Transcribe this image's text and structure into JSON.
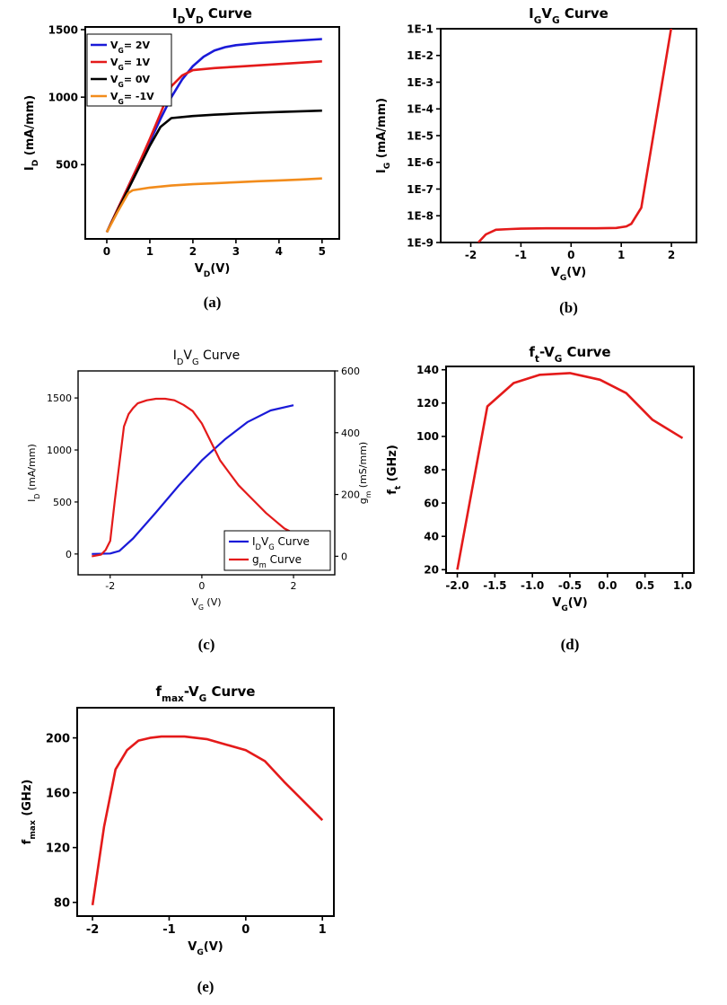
{
  "colors": {
    "blue": "#1a1ad8",
    "red": "#e41a1a",
    "black": "#000000",
    "orange": "#f28c1c"
  },
  "chart_data": [
    {
      "id": "a",
      "type": "line",
      "caption": "(a)",
      "title": {
        "main": "I",
        "sub1": "D",
        "mid": "V",
        "sub2": "D",
        "tail": " Curve"
      },
      "xlabel": {
        "main": "V",
        "sub": "D",
        "tail": "(V)"
      },
      "ylabel": {
        "main": "I",
        "sub": "D",
        "tail": " (mA/mm)"
      },
      "xlim": [
        -0.5,
        5.4
      ],
      "ylim": [
        -50,
        1520
      ],
      "xticks": [
        0,
        1,
        2,
        3,
        4,
        5
      ],
      "xtick_labels": [
        "0",
        "1",
        "2",
        "3",
        "4",
        "5"
      ],
      "yticks": [
        500,
        1000,
        1500
      ],
      "ytick_labels": [
        "500",
        "1000",
        "1500"
      ],
      "legend_placement": "top-left",
      "series": [
        {
          "name": "V_G= 2V",
          "legend": {
            "main": "V",
            "sub": "G",
            "tail": "= 2V"
          },
          "color": "#1a1ad8",
          "x": [
            0,
            0.25,
            0.5,
            0.75,
            1,
            1.25,
            1.5,
            1.75,
            2,
            2.25,
            2.5,
            2.75,
            3,
            3.5,
            4,
            4.5,
            5
          ],
          "y": [
            0,
            170,
            340,
            510,
            670,
            840,
            1000,
            1130,
            1230,
            1300,
            1345,
            1370,
            1385,
            1400,
            1410,
            1420,
            1430
          ]
        },
        {
          "name": "V_G= 1V",
          "legend": {
            "main": "V",
            "sub": "G",
            "tail": "= 1V"
          },
          "color": "#e41a1a",
          "x": [
            0,
            0.25,
            0.5,
            0.75,
            1,
            1.25,
            1.5,
            1.75,
            2,
            2.5,
            3,
            3.5,
            4,
            4.5,
            5
          ],
          "y": [
            0,
            170,
            340,
            510,
            690,
            880,
            1080,
            1160,
            1200,
            1215,
            1225,
            1235,
            1245,
            1255,
            1265
          ]
        },
        {
          "name": "V_G= 0V",
          "legend": {
            "main": "V",
            "sub": "G",
            "tail": "= 0V"
          },
          "color": "#000000",
          "x": [
            0,
            0.25,
            0.5,
            0.75,
            1,
            1.25,
            1.5,
            2,
            2.5,
            3,
            3.5,
            4,
            4.5,
            5
          ],
          "y": [
            0,
            160,
            320,
            480,
            640,
            780,
            845,
            860,
            870,
            878,
            885,
            890,
            895,
            900
          ]
        },
        {
          "name": "V_G= -1V",
          "legend": {
            "main": "V",
            "sub": "G",
            "tail": "= -1V"
          },
          "color": "#f28c1c",
          "x": [
            0,
            0.25,
            0.5,
            0.6,
            1,
            1.5,
            2,
            2.5,
            3,
            3.5,
            4,
            4.5,
            5
          ],
          "y": [
            0,
            150,
            290,
            310,
            330,
            345,
            355,
            362,
            370,
            377,
            383,
            390,
            398
          ]
        }
      ]
    },
    {
      "id": "b",
      "type": "line",
      "caption": "(b)",
      "title": {
        "main": "I",
        "sub1": "G",
        "mid": "V",
        "sub2": "G",
        "tail": " Curve"
      },
      "xlabel": {
        "main": "V",
        "sub": "G",
        "tail": "(V)"
      },
      "ylabel": {
        "main": "I",
        "sub": "G",
        "tail": " (mA/mm)"
      },
      "yscale": "log",
      "xlim": [
        -2.6,
        2.5
      ],
      "ylim_exp": [
        -9,
        -1
      ],
      "xticks": [
        -2,
        -1,
        0,
        1,
        2
      ],
      "xtick_labels": [
        "-2",
        "-1",
        "0",
        "1",
        "2"
      ],
      "yticks_exp": [
        -1,
        -2,
        -3,
        -4,
        -5,
        -6,
        -7,
        -8,
        -9
      ],
      "ytick_labels": [
        "1E-1",
        "1E-2",
        "1E-3",
        "1E-4",
        "1E-5",
        "1E-6",
        "1E-7",
        "1E-8",
        "1E-9"
      ],
      "series": [
        {
          "color": "#e41a1a",
          "x": [
            -1.85,
            -1.7,
            -1.5,
            -1.2,
            -1,
            -0.5,
            0,
            0.5,
            0.9,
            1.1,
            1.2,
            1.4,
            2
          ],
          "y": [
            1e-09,
            2e-09,
            3e-09,
            3.2e-09,
            3.3e-09,
            3.4e-09,
            3.4e-09,
            3.4e-09,
            3.5e-09,
            4e-09,
            5e-09,
            2e-08,
            0.12
          ]
        }
      ]
    },
    {
      "id": "c",
      "type": "line",
      "caption": "(c)",
      "title": {
        "main": "I",
        "sub1": "D",
        "mid": "V",
        "sub2": "G",
        "tail": " Curve"
      },
      "xlabel": {
        "main": "V",
        "sub": "G",
        "tail": " (V)"
      },
      "ylabel": {
        "main": "I",
        "sub": "D",
        "tail": " (mA/mm)"
      },
      "y2label": {
        "main": "g",
        "sub": "m",
        "tail": " (mS/mm)"
      },
      "xlim": [
        -2.7,
        2.9
      ],
      "ylim": [
        -200,
        1760
      ],
      "y2lim": [
        -60,
        600
      ],
      "xticks": [
        -2,
        0,
        2
      ],
      "xtick_labels": [
        "-2",
        "0",
        "2"
      ],
      "yticks": [
        0,
        500,
        1000,
        1500
      ],
      "ytick_labels": [
        "0",
        "500",
        "1000",
        "1500"
      ],
      "y2ticks": [
        0,
        200,
        400,
        600
      ],
      "y2tick_labels": [
        "0",
        "200",
        "400",
        "600"
      ],
      "legend_placement": "bottom-right",
      "series": [
        {
          "name": "I_DV_G Curve",
          "legend": {
            "main": "I",
            "sub1": "D",
            "mid": "V",
            "sub2": "G",
            "tail": " Curve"
          },
          "axis": "left",
          "color": "#1a1ad8",
          "x": [
            -2.4,
            -2,
            -1.8,
            -1.5,
            -1,
            -0.5,
            0,
            0.5,
            1,
            1.5,
            2
          ],
          "y": [
            0,
            5,
            30,
            150,
            400,
            660,
            900,
            1100,
            1270,
            1380,
            1430
          ]
        },
        {
          "name": "g_m Curve",
          "legend": {
            "main": "g",
            "sub": "m",
            "tail": " Curve"
          },
          "axis": "right",
          "color": "#e41a1a",
          "x": [
            -2.4,
            -2.2,
            -2.1,
            -2,
            -1.9,
            -1.8,
            -1.7,
            -1.6,
            -1.5,
            -1.4,
            -1.2,
            -1,
            -0.8,
            -0.6,
            -0.4,
            -0.2,
            0,
            0.2,
            0.4,
            0.6,
            0.8,
            1,
            1.2,
            1.4,
            1.6,
            1.8,
            2
          ],
          "y": [
            0,
            5,
            20,
            50,
            180,
            300,
            420,
            460,
            480,
            495,
            505,
            510,
            510,
            505,
            490,
            470,
            430,
            370,
            310,
            270,
            230,
            200,
            170,
            140,
            115,
            90,
            75
          ]
        }
      ]
    },
    {
      "id": "d",
      "type": "line",
      "caption": "(d)",
      "title": {
        "main": "f",
        "sub1": "t",
        "mid": "-V",
        "sub2": "G",
        "tail": " Curve"
      },
      "xlabel": {
        "main": "V",
        "sub": "G",
        "tail": "(V)"
      },
      "ylabel": {
        "main": "f",
        "sub": "t",
        "tail": " (GHz)"
      },
      "xlim": [
        -2.15,
        1.15
      ],
      "ylim": [
        18,
        142
      ],
      "xticks": [
        -2,
        -1.5,
        -1,
        -0.5,
        0,
        0.5,
        1
      ],
      "xtick_labels": [
        "-2.0",
        "-1.5",
        "-1.0",
        "-0.5",
        "0.0",
        "0.5",
        "1.0"
      ],
      "yticks": [
        20,
        40,
        60,
        80,
        100,
        120,
        140
      ],
      "ytick_labels": [
        "20",
        "40",
        "60",
        "80",
        "100",
        "120",
        "140"
      ],
      "series": [
        {
          "color": "#e41a1a",
          "x": [
            -2,
            -1.6,
            -1.25,
            -0.9,
            -0.5,
            -0.1,
            0.25,
            0.6,
            1
          ],
          "y": [
            20,
            118,
            132,
            137,
            138,
            134,
            126,
            110,
            99
          ]
        }
      ]
    },
    {
      "id": "e",
      "type": "line",
      "caption": "(e)",
      "title": {
        "main": "f",
        "sub1": "max",
        "mid": "-V",
        "sub2": "G",
        "tail": " Curve"
      },
      "xlabel": {
        "main": "V",
        "sub": "G",
        "tail": "(V)"
      },
      "ylabel": {
        "main": "f",
        "sub": "max",
        "tail": " (GHz)"
      },
      "xlim": [
        -2.2,
        1.15
      ],
      "ylim": [
        70,
        222
      ],
      "xticks": [
        -2,
        -1,
        0,
        1
      ],
      "xtick_labels": [
        "-2",
        "-1",
        "0",
        "1"
      ],
      "yticks": [
        80,
        120,
        160,
        200
      ],
      "ytick_labels": [
        "80",
        "120",
        "160",
        "200"
      ],
      "series": [
        {
          "color": "#e41a1a",
          "x": [
            -2,
            -1.85,
            -1.7,
            -1.55,
            -1.4,
            -1.25,
            -1.1,
            -0.95,
            -0.8,
            -0.5,
            -0.25,
            0,
            0.25,
            0.5,
            0.75,
            1
          ],
          "y": [
            78,
            135,
            177,
            191,
            198,
            200,
            201,
            201,
            201,
            199,
            195,
            191,
            183,
            168,
            154,
            140
          ]
        }
      ]
    }
  ]
}
